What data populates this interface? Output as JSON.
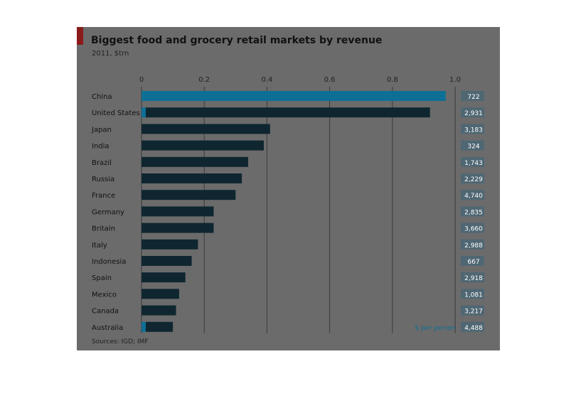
{
  "header": {
    "title": "Biggest food and grocery retail markets by revenue",
    "subtitle": "2011, $trn"
  },
  "footer": {
    "source": "Sources: IGD; IMF"
  },
  "legend": {
    "secondary_label": "$ per person"
  },
  "colors": {
    "panel": "#6b6b6b",
    "bar": "#0f2630",
    "bar_highlight": "#0e6f96",
    "value_box": "#4f6773",
    "grid": "#3a3a3a",
    "accent": "#8b1a1a"
  },
  "chart_data": {
    "type": "bar",
    "orientation": "horizontal",
    "title": "Biggest food and grocery retail markets by revenue",
    "subtitle": "2011, $trn",
    "xlim": [
      0,
      1.0
    ],
    "ticks": [
      "0",
      "0.2",
      "0.4",
      "0.6",
      "0.8",
      "1.0"
    ],
    "tick_values": [
      0,
      0.2,
      0.4,
      0.6,
      0.8,
      1.0
    ],
    "grid": true,
    "categories": [
      "China",
      "United States",
      "Japan",
      "India",
      "Brazil",
      "Russia",
      "France",
      "Germany",
      "Britain",
      "Italy",
      "Indonesia",
      "Spain",
      "Mexico",
      "Canada",
      "Australia"
    ],
    "series": [
      {
        "values": [
          0.97,
          0.92,
          0.41,
          0.39,
          0.34,
          0.32,
          0.3,
          0.23,
          0.23,
          0.18,
          0.16,
          0.14,
          0.12,
          0.11,
          0.1
        ]
      },
      {
        "name": "$ per person",
        "values": [
          "722",
          "2,931",
          "3,183",
          "324",
          "1,743",
          "2,229",
          "4,740",
          "2,835",
          "3,660",
          "2,988",
          "667",
          "2,918",
          "1,081",
          "3,217",
          "4,488"
        ]
      }
    ]
  }
}
